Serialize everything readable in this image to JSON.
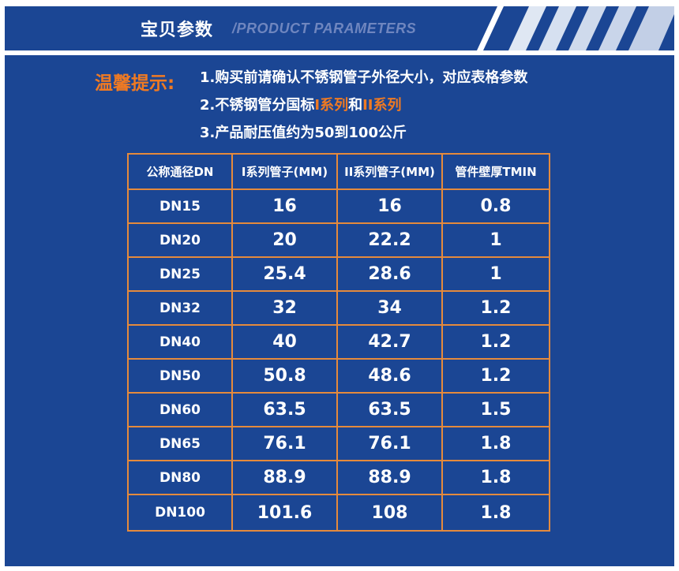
{
  "header": {
    "title": "宝贝参数",
    "subtitle": "/PRODUCT PARAMETERS"
  },
  "notice": {
    "label": "温馨提示:",
    "line1": "1.购买前请确认不锈钢管子外径大小，对应表格参数",
    "line2_prefix": "2.不锈钢管分国标",
    "line2_series1": "I系列",
    "line2_and": "和",
    "line2_series2": "II系列",
    "line3": "3.产品耐压值约为50到100公斤"
  },
  "table": {
    "headers": [
      "公称通径DN",
      "I系列管子(MM)",
      "II系列管子(MM)",
      "管件壁厚TMIN"
    ],
    "rows": [
      [
        "DN15",
        "16",
        "16",
        "0.8"
      ],
      [
        "DN20",
        "20",
        "22.2",
        "1"
      ],
      [
        "DN25",
        "25.4",
        "28.6",
        "1"
      ],
      [
        "DN32",
        "32",
        "34",
        "1.2"
      ],
      [
        "DN40",
        "40",
        "42.7",
        "1.2"
      ],
      [
        "DN50",
        "50.8",
        "48.6",
        "1.2"
      ],
      [
        "DN60",
        "63.5",
        "63.5",
        "1.5"
      ],
      [
        "DN65",
        "76.1",
        "76.1",
        "1.8"
      ],
      [
        "DN80",
        "88.9",
        "88.9",
        "1.8"
      ],
      [
        "DN100",
        "101.6",
        "108",
        "1.8"
      ]
    ]
  },
  "colors": {
    "background": "#1b4694",
    "accent_orange": "#f07a22",
    "table_border": "#e58a3c",
    "text": "#ffffff"
  }
}
